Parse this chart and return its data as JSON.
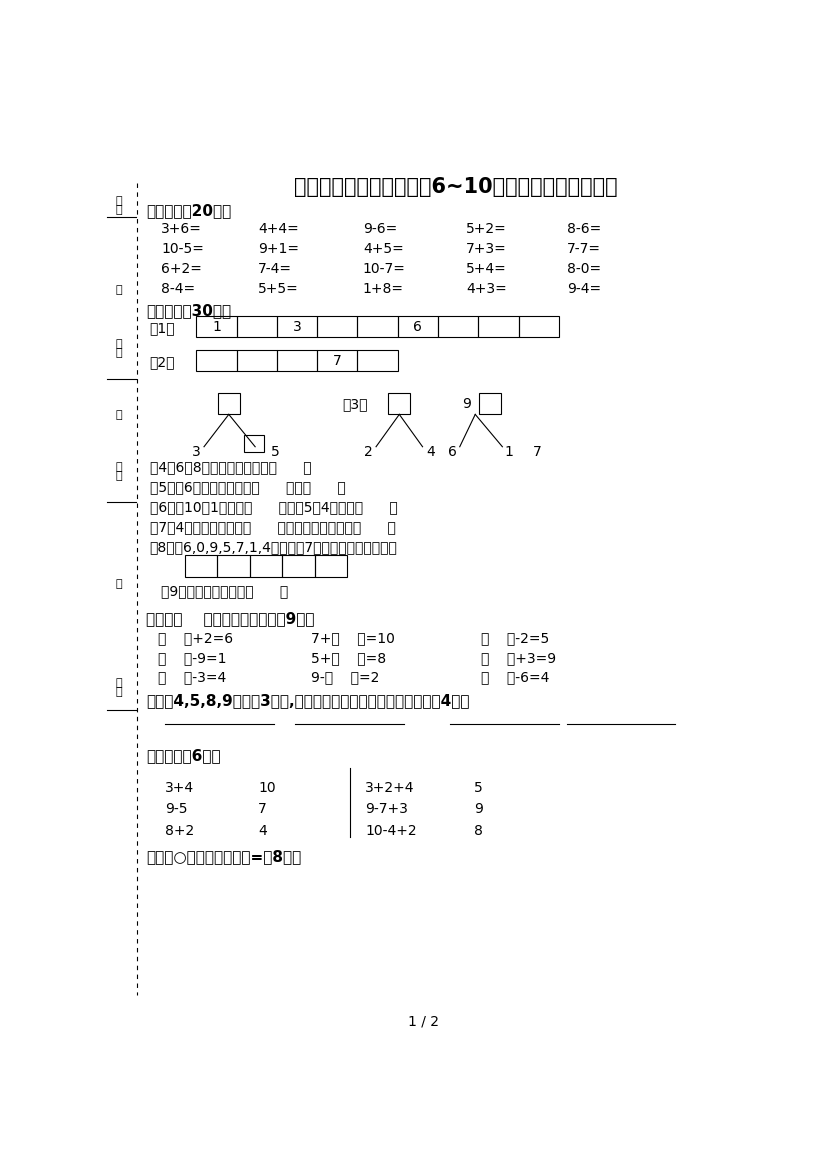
{
  "title": "一年级数学上册第五单元6~10的认识和加减法测试题",
  "bg_color": "#ffffff",
  "text_color": "#000000",
  "section1_header": "一、口算（20分）",
  "section1_rows": [
    [
      "3+6=",
      "4+4=",
      "9-6=",
      "5+2=",
      "8-6="
    ],
    [
      "10-5=",
      "9+1=",
      "4+5=",
      "7+3=",
      "7-7="
    ],
    [
      "6+2=",
      "7-4=",
      "10-7=",
      "5+4=",
      "8-0="
    ],
    [
      "8-4=",
      "5+5=",
      "1+8=",
      "4+3=",
      "9-4="
    ]
  ],
  "section2_header": "二、填写（30分）",
  "section3_header": "三、在（    ）里填上合适的数（9分）",
  "section3_rows": [
    [
      "（    ）+2=6",
      "7+（    ）=10",
      "（    ）-2=5"
    ],
    [
      "（    ）-9=1",
      "5+（    ）=8",
      "（    ）+3=9"
    ],
    [
      "（    ）-3=4",
      "9-（    ）=2",
      "（    ）-6=4"
    ]
  ],
  "section4_header": "四、从4,5,8,9中选出3个数,写出两个加法算式和两个减法算式（4分）",
  "section5_header": "五、连线（6分）",
  "section5_left": [
    [
      "3+4",
      "10"
    ],
    [
      "9-5",
      "7"
    ],
    [
      "8+2",
      "4"
    ]
  ],
  "section5_right": [
    [
      "3+2+4",
      "5"
    ],
    [
      "9-7+3",
      "9"
    ],
    [
      "10-4+2",
      "8"
    ]
  ],
  "section6_header": "六、在○里填上＞、＜或=（8分）",
  "page_num": "1 / 2",
  "kaonum": "考号",
  "xingming": "姓名",
  "banji": "班级",
  "zhuang": "装",
  "xuexiao": "学校",
  "ding": "订",
  "xian": "线"
}
